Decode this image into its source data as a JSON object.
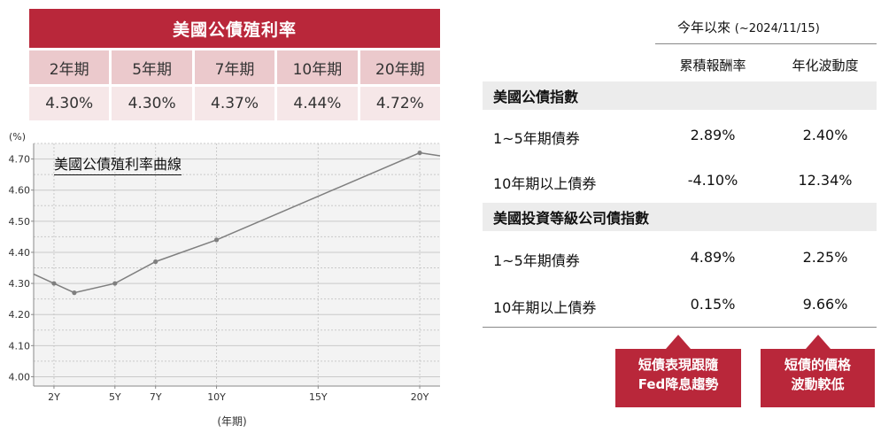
{
  "yield_table": {
    "title": "美國公債殖利率",
    "headers": [
      "2年期",
      "5年期",
      "7年期",
      "10年期",
      "20年期"
    ],
    "values": [
      "4.30%",
      "4.30%",
      "4.37%",
      "4.44%",
      "4.72%"
    ]
  },
  "chart_data": {
    "type": "line",
    "title": "美國公債殖利率曲線",
    "y_unit": "(%)",
    "xlabel": "(年期)",
    "x": [
      1,
      2,
      3,
      5,
      7,
      10,
      20,
      21
    ],
    "series": [
      {
        "values": [
          4.33,
          4.3,
          4.27,
          4.3,
          4.37,
          4.44,
          4.72,
          4.71
        ]
      }
    ],
    "xticks": [
      2,
      5,
      7,
      10,
      15,
      20
    ],
    "xtick_labels": [
      "2Y",
      "5Y",
      "7Y",
      "10Y",
      "15Y",
      "20Y"
    ],
    "yticks": [
      4.0,
      4.1,
      4.2,
      4.3,
      4.4,
      4.5,
      4.6,
      4.7
    ],
    "ytick_labels": [
      "4.00",
      "4.10",
      "4.20",
      "4.30",
      "4.40",
      "4.50",
      "4.60",
      "4.70"
    ],
    "ylim": [
      3.97,
      4.75
    ],
    "xlim": [
      1,
      21
    ],
    "grid": true,
    "colors": {
      "line": "#7f7f7f",
      "marker": "#7f7f7f",
      "background": "#f3f3f3",
      "grid": "#c9c9c9"
    }
  },
  "return_table": {
    "period_label": "今年以來",
    "period_sub": "(~2024/11/15)",
    "col_headers": [
      "累積報酬率",
      "年化波動度"
    ],
    "groups": [
      {
        "name": "美國公債指數",
        "rows": [
          {
            "label": "1~5年期債券",
            "cumulative": "2.89%",
            "volatility": "2.40%"
          },
          {
            "label": "10年期以上債券",
            "cumulative": "-4.10%",
            "volatility": "12.34%"
          }
        ]
      },
      {
        "name": "美國投資等級公司債指數",
        "rows": [
          {
            "label": "1~5年期債券",
            "cumulative": "4.89%",
            "volatility": "2.25%"
          },
          {
            "label": "10年期以上債券",
            "cumulative": "0.15%",
            "volatility": "9.66%"
          }
        ]
      }
    ]
  },
  "callouts": [
    {
      "line1": "短債表現跟隨",
      "line2": "Fed降息趨勢"
    },
    {
      "line1": "短債的價格",
      "line2": "波動較低"
    }
  ],
  "colors": {
    "accent": "#b9273a",
    "header_pink": "#ebc9cc",
    "value_pink": "#f6e7e8",
    "category_gray": "#ececec"
  }
}
